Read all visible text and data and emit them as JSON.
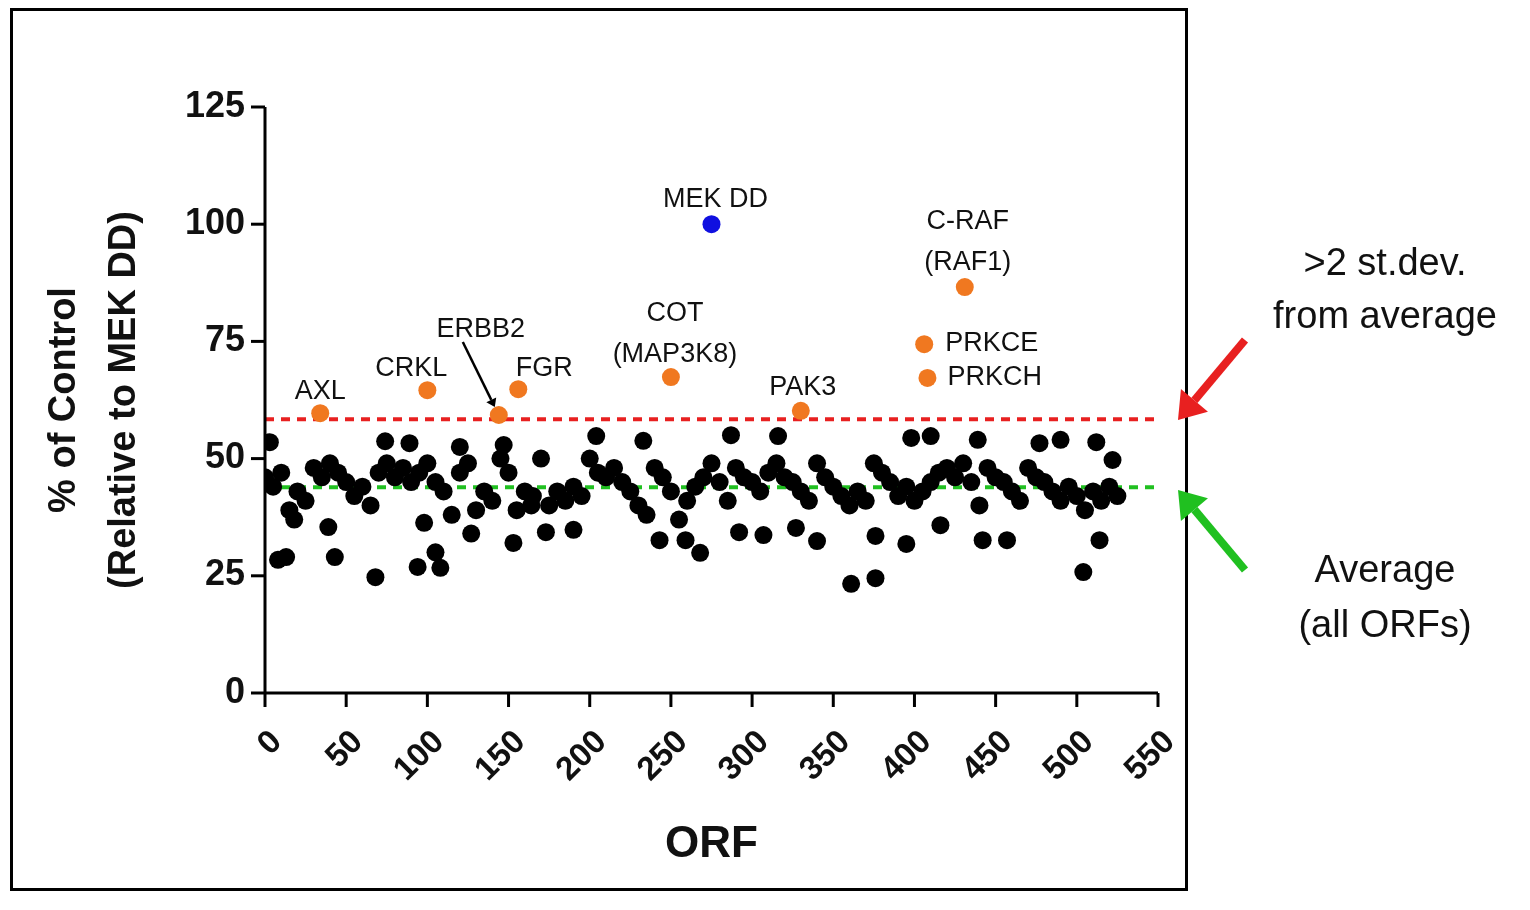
{
  "chart_data": {
    "type": "scatter",
    "xlabel": "ORF",
    "ylabel": "% of Control\n(Relative to MEK DD)",
    "xlim": [
      0,
      550
    ],
    "ylim": [
      0,
      125
    ],
    "xticks": [
      0,
      50,
      100,
      150,
      200,
      250,
      300,
      350,
      400,
      450,
      500,
      550
    ],
    "yticks": [
      0,
      25,
      50,
      75,
      100,
      125
    ],
    "marker": "circle",
    "series": [
      {
        "color": "#000000",
        "x": [
          0,
          5,
          10,
          15,
          20,
          25,
          30,
          35,
          40,
          45,
          50,
          55,
          60,
          65,
          70,
          75,
          80,
          85,
          90,
          95,
          100,
          105,
          110,
          115,
          120,
          125,
          130,
          135,
          140,
          145,
          150,
          155,
          160,
          165,
          170,
          175,
          180,
          185,
          190,
          195,
          200,
          205,
          210,
          215,
          220,
          225,
          230,
          235,
          240,
          245,
          250,
          255,
          260,
          265,
          270,
          275,
          280,
          285,
          290,
          295,
          300,
          305,
          310,
          315,
          320,
          325,
          330,
          335,
          340,
          345,
          350,
          355,
          360,
          365,
          370,
          375,
          380,
          385,
          390,
          395,
          400,
          405,
          410,
          415,
          420,
          425,
          430,
          435,
          440,
          445,
          450,
          455,
          460,
          465,
          470,
          475,
          480,
          485,
          490,
          495,
          500,
          505,
          510,
          515,
          520,
          525,
          3,
          8,
          13,
          18,
          39,
          43,
          68,
          74,
          89,
          94,
          98,
          105,
          108,
          120,
          127,
          147,
          153,
          164,
          173,
          190,
          204,
          233,
          243,
          259,
          268,
          287,
          292,
          307,
          316,
          327,
          340,
          361,
          376,
          376,
          395,
          398,
          410,
          416,
          439,
          442,
          457,
          477,
          490,
          504,
          512,
          514,
          522
        ],
        "values": [
          46,
          44,
          47,
          39,
          43,
          41,
          48,
          46,
          49,
          47,
          45,
          42,
          44,
          40,
          47,
          49,
          46,
          48,
          45,
          47,
          49,
          45,
          43,
          38,
          47,
          49,
          39,
          43,
          41,
          50,
          47,
          39,
          43,
          42,
          50,
          40,
          43,
          41,
          44,
          42,
          50,
          47,
          46,
          48,
          45,
          43,
          40,
          38,
          48,
          46,
          43,
          37,
          41,
          44,
          46,
          49,
          45,
          41,
          48,
          46,
          45,
          43,
          47,
          49,
          46,
          45,
          43,
          41,
          49,
          46,
          44,
          42,
          40,
          43,
          41,
          49,
          47,
          45,
          42,
          44,
          41,
          43,
          45,
          47,
          48,
          46,
          49,
          45,
          40,
          48,
          46,
          45,
          43,
          41,
          48,
          46,
          45,
          43,
          41,
          44,
          42,
          39,
          43,
          41,
          44,
          42,
          53.5,
          28.4,
          29,
          37,
          35.4,
          29,
          24.7,
          53.7,
          53.3,
          26.9,
          36.3,
          30,
          26.7,
          52.5,
          34,
          52.9,
          32,
          40,
          34.3,
          34.8,
          54.8,
          53.8,
          32.6,
          32.6,
          29.9,
          55,
          34.3,
          33.7,
          54.8,
          35.2,
          32.4,
          23.3,
          24.5,
          33.5,
          31.8,
          54.4,
          54.8,
          35.8,
          54,
          32.6,
          32.6,
          53.3,
          54,
          25.8,
          53.5,
          32.6,
          49.7
        ]
      },
      {
        "color": "#f07820",
        "x": [
          34,
          100,
          144,
          156,
          250,
          330,
          406,
          408,
          431
        ],
        "values": [
          59.7,
          64.6,
          59.3,
          64.8,
          67.4,
          60.2,
          74.4,
          67.2,
          86.6
        ]
      },
      {
        "color": "#1010e0",
        "x": [
          275
        ],
        "values": [
          100
        ]
      }
    ],
    "ref_lines": [
      {
        "axis": "y",
        "value": 58.4,
        "color": "#e82020",
        "line_style": "dashed"
      },
      {
        "axis": "y",
        "value": 43.9,
        "color": "#20c020",
        "line_style": "dashed"
      }
    ],
    "annotations": [
      {
        "text": "AXL",
        "x": 34,
        "y": 59.7
      },
      {
        "text": "CRKL",
        "x": 100,
        "y": 64.6
      },
      {
        "text": "ERBB2",
        "x": 144,
        "y": 59.3
      },
      {
        "text": "FGR",
        "x": 156,
        "y": 64.8
      },
      {
        "text": "COT\n(MAP3K8)",
        "x": 250,
        "y": 67.4
      },
      {
        "text": "PAK3",
        "x": 330,
        "y": 60.2
      },
      {
        "text": "PRKCE",
        "x": 406,
        "y": 74.4
      },
      {
        "text": "PRKCH",
        "x": 408,
        "y": 67.2
      },
      {
        "text": "C-RAF\n(RAF1)",
        "x": 431,
        "y": 86.6
      },
      {
        "text": "MEK DD",
        "x": 275,
        "y": 100
      },
      ">2 st.dev.\nfrom average",
      "Average\n(all ORFs)"
    ]
  }
}
